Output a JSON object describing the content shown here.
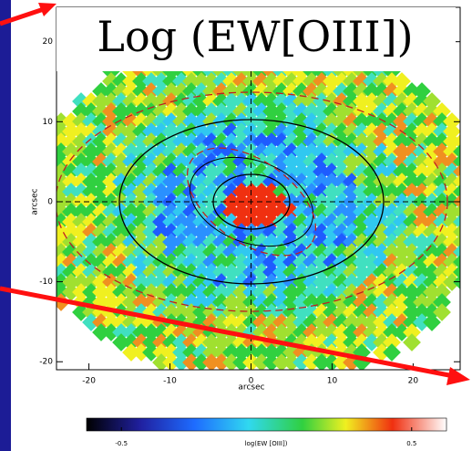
{
  "chart_data": {
    "type": "heatmap",
    "title": "Log (EW[OIII])",
    "xlabel": "arcsec",
    "ylabel": "arcsec",
    "xlim": [
      -24,
      25.8
    ],
    "ylim": [
      -21,
      24.3
    ],
    "xticks": [
      -20,
      -10,
      0,
      10,
      20
    ],
    "yticks": [
      -20,
      -10,
      0,
      10,
      20
    ],
    "colorbar": {
      "label": "log(EW [OIII])",
      "lim": [
        -0.62,
        0.62
      ],
      "ticks": [
        -0.5,
        0.5
      ]
    }
  }
}
